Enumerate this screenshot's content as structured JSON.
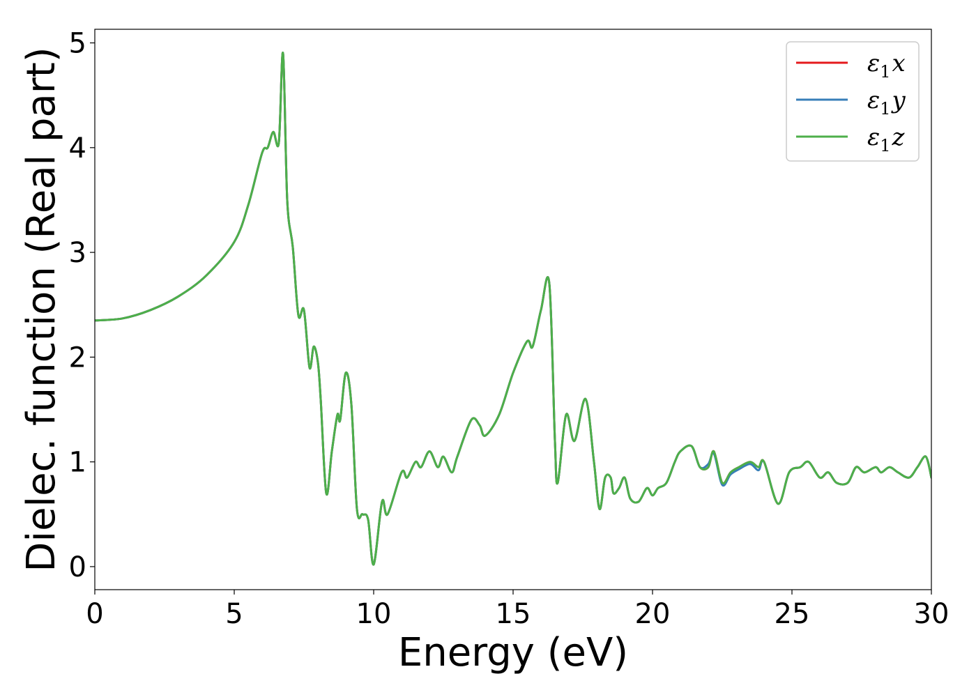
{
  "chart_data": {
    "type": "line",
    "title": "",
    "xlabel": "Energy (eV)",
    "ylabel": "Dielec. function (Real part)",
    "xlim": [
      0,
      30
    ],
    "ylim": [
      -0.22,
      5.13
    ],
    "xticks": [
      0,
      5,
      10,
      15,
      20,
      25,
      30
    ],
    "yticks": [
      0,
      1,
      2,
      3,
      4,
      5
    ],
    "grid": false,
    "legend_position": "top-right",
    "series": [
      {
        "name": "ε1x",
        "legend_main": "ε",
        "legend_sub": "1",
        "legend_suffix": "x",
        "color": "#e41a1c",
        "x": [
          0,
          1,
          2,
          3,
          4,
          5,
          5.5,
          6,
          6.2,
          6.4,
          6.6,
          6.75,
          6.9,
          7.1,
          7.3,
          7.5,
          7.7,
          7.85,
          8.0,
          8.1,
          8.3,
          8.5,
          8.7,
          8.8,
          9.0,
          9.2,
          9.4,
          9.6,
          9.8,
          10.0,
          10.3,
          10.5,
          11.0,
          11.2,
          11.5,
          11.7,
          12.0,
          12.3,
          12.5,
          12.8,
          13.0,
          13.5,
          13.8,
          14.0,
          14.5,
          15.0,
          15.5,
          15.7,
          16.0,
          16.3,
          16.5,
          16.6,
          16.9,
          17.2,
          17.6,
          17.9,
          18.1,
          18.3,
          18.5,
          18.6,
          18.8,
          19.0,
          19.2,
          19.5,
          19.8,
          20.0,
          20.2,
          20.5,
          20.8,
          21.0,
          21.4,
          21.7,
          22.0,
          22.2,
          22.5,
          22.8,
          23.1,
          23.5,
          23.8,
          24.0,
          24.5,
          24.9,
          25.3,
          25.6,
          26.0,
          26.3,
          26.6,
          27.0,
          27.3,
          27.6,
          28.0,
          28.2,
          28.5,
          28.8,
          29.2,
          29.5,
          29.8,
          30.0
        ],
        "y": [
          2.35,
          2.37,
          2.45,
          2.58,
          2.78,
          3.1,
          3.45,
          3.95,
          4.0,
          4.15,
          4.05,
          4.9,
          3.5,
          3.05,
          2.4,
          2.45,
          1.9,
          2.1,
          1.95,
          1.6,
          0.7,
          1.1,
          1.45,
          1.4,
          1.85,
          1.55,
          0.55,
          0.5,
          0.45,
          0.02,
          0.62,
          0.5,
          0.9,
          0.85,
          1.0,
          0.95,
          1.1,
          0.95,
          1.05,
          0.9,
          1.05,
          1.4,
          1.35,
          1.25,
          1.45,
          1.85,
          2.15,
          2.1,
          2.45,
          2.7,
          1.2,
          0.8,
          1.45,
          1.2,
          1.6,
          1.0,
          0.55,
          0.85,
          0.85,
          0.7,
          0.75,
          0.85,
          0.65,
          0.62,
          0.75,
          0.68,
          0.75,
          0.8,
          1.0,
          1.1,
          1.15,
          0.95,
          0.95,
          1.1,
          0.8,
          0.9,
          0.95,
          1.0,
          0.95,
          1.0,
          0.6,
          0.9,
          0.95,
          1.0,
          0.85,
          0.9,
          0.8,
          0.8,
          0.95,
          0.9,
          0.95,
          0.9,
          0.95,
          0.9,
          0.85,
          0.95,
          1.05,
          0.85
        ]
      },
      {
        "name": "ε1y",
        "legend_main": "ε",
        "legend_sub": "1",
        "legend_suffix": "y",
        "color": "#377eb8",
        "x": [
          0,
          1,
          2,
          3,
          4,
          5,
          5.5,
          6,
          6.2,
          6.4,
          6.6,
          6.75,
          6.9,
          7.1,
          7.3,
          7.5,
          7.7,
          7.85,
          8.0,
          8.1,
          8.3,
          8.5,
          8.7,
          8.8,
          9.0,
          9.2,
          9.4,
          9.6,
          9.8,
          10.0,
          10.3,
          10.5,
          11.0,
          11.2,
          11.5,
          11.7,
          12.0,
          12.3,
          12.5,
          12.8,
          13.0,
          13.5,
          13.8,
          14.0,
          14.5,
          15.0,
          15.5,
          15.7,
          16.0,
          16.3,
          16.5,
          16.6,
          16.9,
          17.2,
          17.6,
          17.9,
          18.1,
          18.3,
          18.5,
          18.6,
          18.8,
          19.0,
          19.2,
          19.5,
          19.8,
          20.0,
          20.2,
          20.5,
          20.8,
          21.0,
          21.4,
          21.7,
          22.0,
          22.2,
          22.5,
          22.8,
          23.1,
          23.5,
          23.8,
          24.0,
          24.5,
          24.9,
          25.3,
          25.6,
          26.0,
          26.3,
          26.6,
          27.0,
          27.3,
          27.6,
          28.0,
          28.2,
          28.5,
          28.8,
          29.2,
          29.5,
          29.8,
          30.0
        ],
        "y": [
          2.35,
          2.37,
          2.45,
          2.58,
          2.78,
          3.1,
          3.45,
          3.95,
          4.0,
          4.15,
          4.05,
          4.9,
          3.5,
          3.05,
          2.4,
          2.45,
          1.9,
          2.1,
          1.95,
          1.6,
          0.7,
          1.1,
          1.45,
          1.4,
          1.85,
          1.55,
          0.55,
          0.5,
          0.45,
          0.02,
          0.62,
          0.5,
          0.9,
          0.85,
          1.0,
          0.95,
          1.1,
          0.95,
          1.05,
          0.9,
          1.05,
          1.4,
          1.35,
          1.25,
          1.45,
          1.85,
          2.15,
          2.1,
          2.45,
          2.7,
          1.2,
          0.8,
          1.45,
          1.2,
          1.6,
          1.0,
          0.55,
          0.85,
          0.85,
          0.7,
          0.75,
          0.85,
          0.65,
          0.62,
          0.75,
          0.68,
          0.75,
          0.8,
          1.0,
          1.1,
          1.15,
          0.95,
          0.98,
          1.08,
          0.78,
          0.88,
          0.93,
          0.98,
          0.92,
          1.0,
          0.6,
          0.9,
          0.95,
          1.0,
          0.85,
          0.9,
          0.8,
          0.8,
          0.95,
          0.9,
          0.95,
          0.9,
          0.95,
          0.9,
          0.85,
          0.95,
          1.05,
          0.85
        ]
      },
      {
        "name": "ε1z",
        "legend_main": "ε",
        "legend_sub": "1",
        "legend_suffix": "z",
        "color": "#4daf4a",
        "x": [
          0,
          1,
          2,
          3,
          4,
          5,
          5.5,
          6,
          6.2,
          6.4,
          6.6,
          6.75,
          6.9,
          7.1,
          7.3,
          7.5,
          7.7,
          7.85,
          8.0,
          8.1,
          8.3,
          8.5,
          8.7,
          8.8,
          9.0,
          9.2,
          9.4,
          9.6,
          9.8,
          10.0,
          10.3,
          10.5,
          11.0,
          11.2,
          11.5,
          11.7,
          12.0,
          12.3,
          12.5,
          12.8,
          13.0,
          13.5,
          13.8,
          14.0,
          14.5,
          15.0,
          15.5,
          15.7,
          16.0,
          16.3,
          16.5,
          16.6,
          16.9,
          17.2,
          17.6,
          17.9,
          18.1,
          18.3,
          18.5,
          18.6,
          18.8,
          19.0,
          19.2,
          19.5,
          19.8,
          20.0,
          20.2,
          20.5,
          20.8,
          21.0,
          21.4,
          21.7,
          22.0,
          22.2,
          22.5,
          22.8,
          23.1,
          23.5,
          23.8,
          24.0,
          24.5,
          24.9,
          25.3,
          25.6,
          26.0,
          26.3,
          26.6,
          27.0,
          27.3,
          27.6,
          28.0,
          28.2,
          28.5,
          28.8,
          29.2,
          29.5,
          29.8,
          30.0
        ],
        "y": [
          2.35,
          2.37,
          2.45,
          2.58,
          2.78,
          3.1,
          3.45,
          3.95,
          4.0,
          4.15,
          4.05,
          4.9,
          3.5,
          3.05,
          2.4,
          2.45,
          1.9,
          2.1,
          1.95,
          1.6,
          0.7,
          1.1,
          1.45,
          1.4,
          1.85,
          1.55,
          0.55,
          0.5,
          0.45,
          0.02,
          0.62,
          0.5,
          0.9,
          0.85,
          1.0,
          0.95,
          1.1,
          0.95,
          1.05,
          0.9,
          1.05,
          1.4,
          1.35,
          1.25,
          1.45,
          1.85,
          2.15,
          2.1,
          2.45,
          2.7,
          1.2,
          0.8,
          1.45,
          1.2,
          1.6,
          1.0,
          0.55,
          0.85,
          0.85,
          0.7,
          0.75,
          0.85,
          0.65,
          0.62,
          0.75,
          0.68,
          0.75,
          0.8,
          1.0,
          1.1,
          1.15,
          0.95,
          0.95,
          1.1,
          0.8,
          0.9,
          0.95,
          1.0,
          0.95,
          1.0,
          0.6,
          0.9,
          0.95,
          1.0,
          0.85,
          0.9,
          0.8,
          0.8,
          0.95,
          0.9,
          0.95,
          0.9,
          0.95,
          0.9,
          0.85,
          0.95,
          1.05,
          0.85
        ]
      }
    ]
  }
}
